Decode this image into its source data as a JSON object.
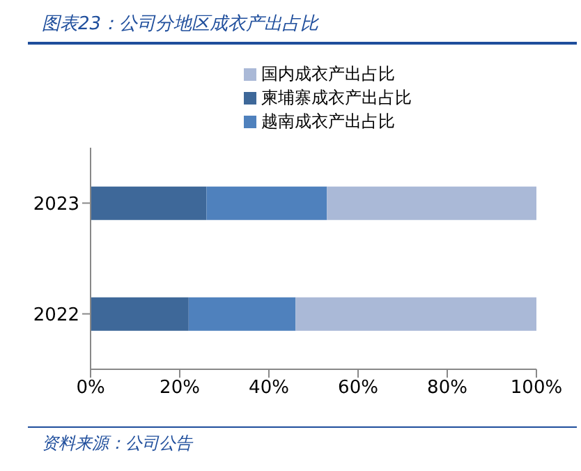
{
  "chart_data": {
    "type": "bar",
    "orientation": "horizontal",
    "stacked": true,
    "title": "图表23：公司分地区成衣产出占比",
    "annotations": [
      "资料来源：公司公告"
    ],
    "categories": [
      "2023",
      "2022"
    ],
    "series": [
      {
        "name": "柬埔寨成衣产出占比",
        "color": "#3e6899",
        "values": [
          26,
          22
        ]
      },
      {
        "name": "越南成衣产出占比",
        "color": "#4f81bd",
        "values": [
          27,
          24
        ]
      },
      {
        "name": "国内成衣产出占比",
        "color": "#aab9d7",
        "values": [
          47,
          54
        ]
      }
    ],
    "xlim": [
      0,
      100
    ],
    "xticks": [
      {
        "value": 0,
        "label": "0%"
      },
      {
        "value": 20,
        "label": "20%"
      },
      {
        "value": 40,
        "label": "40%"
      },
      {
        "value": 60,
        "label": "60%"
      },
      {
        "value": 80,
        "label": "80%"
      },
      {
        "value": 100,
        "label": "100%"
      }
    ],
    "grid": false,
    "legend": "top"
  }
}
